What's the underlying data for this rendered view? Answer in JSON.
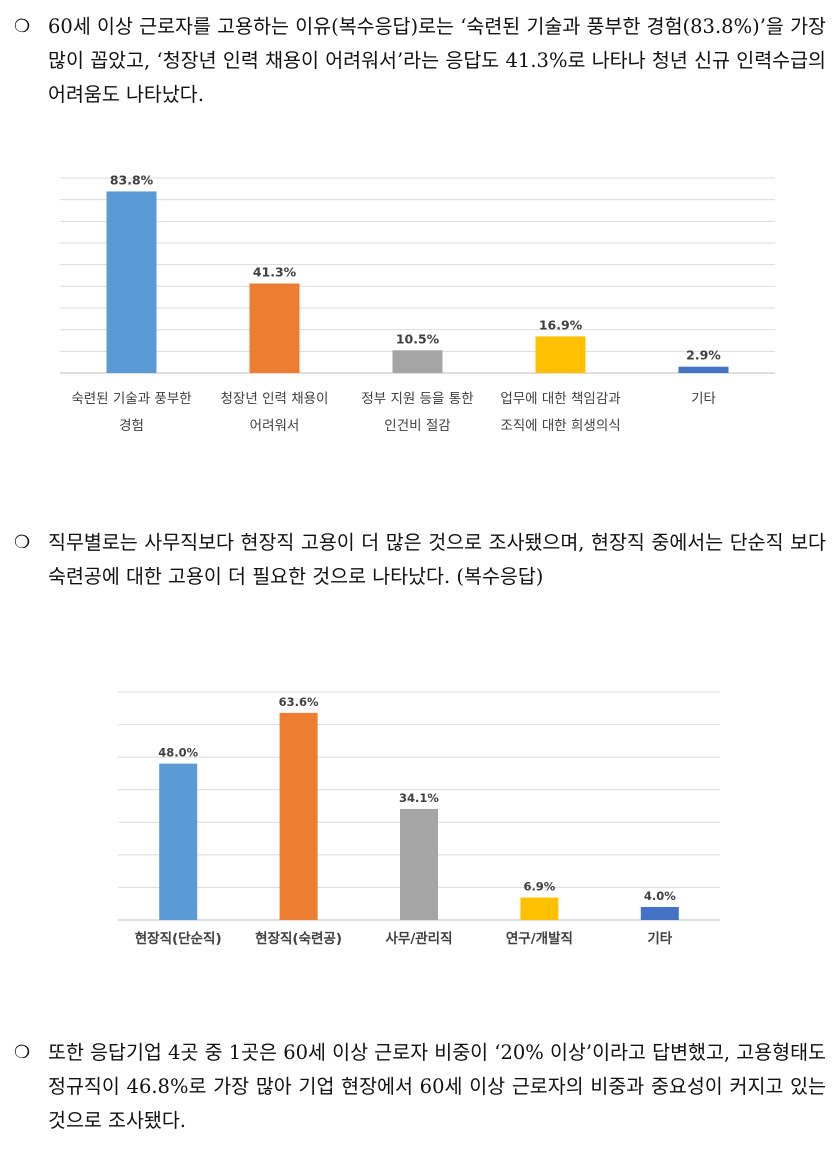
{
  "paragraphs": [
    {
      "bullet": "❍",
      "text": "60세 이상 근로자를 고용하는 이유(복수응답)로는 ‘숙련된 기술과 풍부한 경험(83.8%)’을 가장 많이 꼽았고, ‘청장년 인력 채용이 어려워서’라는 응답도 41.3%로 나타나 청년 신규 인력수급의 어려움도 나타났다."
    },
    {
      "bullet": "❍",
      "text": "직무별로는 사무직보다 현장직 고용이 더 많은 것으로 조사됐으며, 현장직 중에서는 단순직 보다 숙련공에 대한 고용이 더 필요한 것으로 나타났다. (복수응답)"
    },
    {
      "bullet": "❍",
      "text": "또한 응답기업 4곳 중 1곳은 60세 이상 근로자 비중이 ‘20% 이상’이라고 답변했고, 고용형태도 정규직이 46.8%로 가장 많아 기업 현장에서 60세 이상 근로자의 비중과 중요성이 커지고 있는 것으로 조사됐다."
    }
  ],
  "chart_data": [
    {
      "type": "bar",
      "categories": [
        [
          "숙련된 기술과 풍부한",
          "경험"
        ],
        [
          "청장년 인력 채용이",
          "어려워서"
        ],
        [
          "정부 지원 등을 통한",
          "인건비 절감"
        ],
        [
          "업무에 대한 책임감과",
          "조직에 대한 희생의식"
        ],
        [
          "기타"
        ]
      ],
      "values": [
        83.8,
        41.3,
        10.5,
        16.9,
        2.9
      ],
      "value_labels": [
        "83.8%",
        "41.3%",
        "10.5%",
        "16.9%",
        "2.9%"
      ],
      "colors": [
        "#5B9BD5",
        "#ED7D31",
        "#A5A5A5",
        "#FFC000",
        "#4472C4"
      ],
      "ylim": [
        0,
        90
      ],
      "grid": true,
      "gridlines": 9,
      "title": "",
      "xlabel": "",
      "ylabel": ""
    },
    {
      "type": "bar",
      "categories": [
        [
          "현장직(단순직)"
        ],
        [
          "현장직(숙련공)"
        ],
        [
          "사무/관리직"
        ],
        [
          "연구/개발직"
        ],
        [
          "기타"
        ]
      ],
      "values": [
        48.0,
        63.6,
        34.1,
        6.9,
        4.0
      ],
      "value_labels": [
        "48.0%",
        "63.6%",
        "34.1%",
        "6.9%",
        "4.0%"
      ],
      "colors": [
        "#5B9BD5",
        "#ED7D31",
        "#A5A5A5",
        "#FFC000",
        "#4472C4"
      ],
      "ylim": [
        0,
        70
      ],
      "grid": true,
      "gridlines": 7,
      "title": "",
      "xlabel": "",
      "ylabel": ""
    }
  ]
}
